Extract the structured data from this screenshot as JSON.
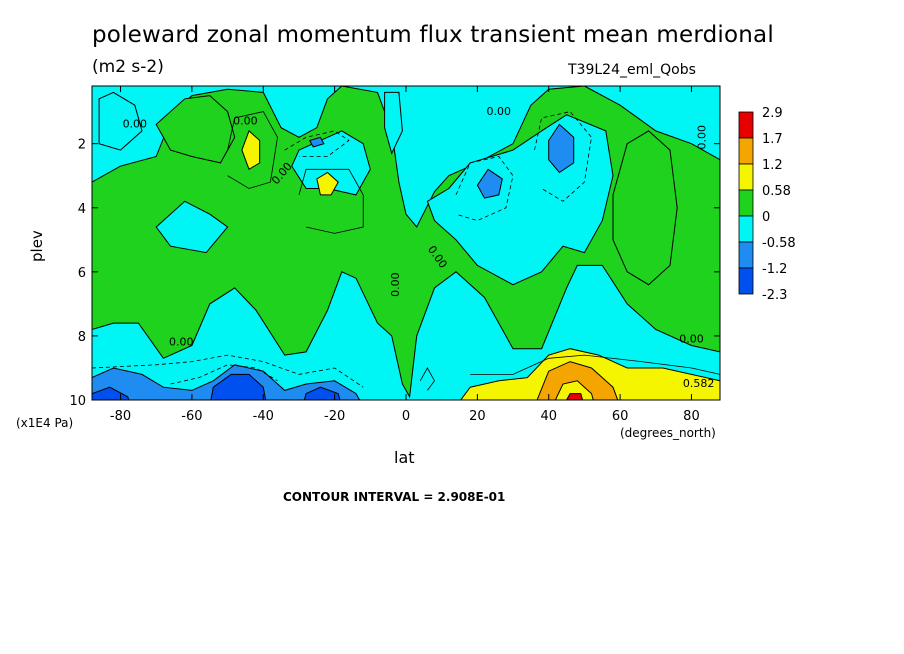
{
  "chart_data": {
    "type": "heatmap",
    "title": "poleward zonal momentum flux transient mean merdional",
    "units": "(m2 s-2)",
    "dataset": "T39L24_eml_Qobs",
    "xlabel": "lat",
    "ylabel": "plev",
    "x_units": "(degrees_north)",
    "y_units": "(x1E4 Pa)",
    "contour_interval_text": "CONTOUR INTERVAL = 2.908E-01",
    "xlim": [
      -88,
      88
    ],
    "ylim": [
      10,
      0.2
    ],
    "x_ticks": [
      -80,
      -60,
      -40,
      -20,
      0,
      20,
      40,
      60,
      80
    ],
    "x_tick_labels": [
      "-80",
      "-60",
      "-40",
      "-20",
      "0",
      "20",
      "40",
      "60",
      "80"
    ],
    "y_ticks": [
      2,
      4,
      6,
      8,
      10
    ],
    "y_tick_labels": [
      "2",
      "4",
      "6",
      "8",
      "10"
    ],
    "colorbar": {
      "labels": [
        "2.9",
        "1.7",
        "1.2",
        "0.58",
        "0",
        "-0.58",
        "-1.2",
        "-2.3"
      ],
      "colors": [
        "#e60000",
        "#f5a500",
        "#f5f500",
        "#1ed21e",
        "#00f5f5",
        "#1e8cf0",
        "#0050f0"
      ]
    },
    "contour_labels": [
      "0.00",
      "0.00",
      "0.00",
      "0.00",
      "0.00",
      "0.00",
      "0.00",
      "0.00",
      "0.00",
      "0.582"
    ],
    "background": "#00f5f5",
    "features": [
      {
        "kind": "positive",
        "level": 1.2,
        "lat": -43,
        "plev": 2.2
      },
      {
        "kind": "positive",
        "level": 1.2,
        "lat": -22,
        "plev": 3.3
      },
      {
        "kind": "positive",
        "level": 2.9,
        "lat": 47,
        "plev": 10
      },
      {
        "kind": "negative",
        "level": -1.2,
        "lat": -47,
        "plev": 9.8
      },
      {
        "kind": "negative",
        "level": -1.2,
        "lat": -82,
        "plev": 9.9
      },
      {
        "kind": "negative",
        "level": -0.58,
        "lat": 23,
        "plev": 3.2
      },
      {
        "kind": "negative",
        "level": -0.58,
        "lat": 43,
        "plev": 2.2
      },
      {
        "kind": "negative",
        "level": -0.58,
        "lat": -25,
        "plev": 9.8
      }
    ]
  }
}
